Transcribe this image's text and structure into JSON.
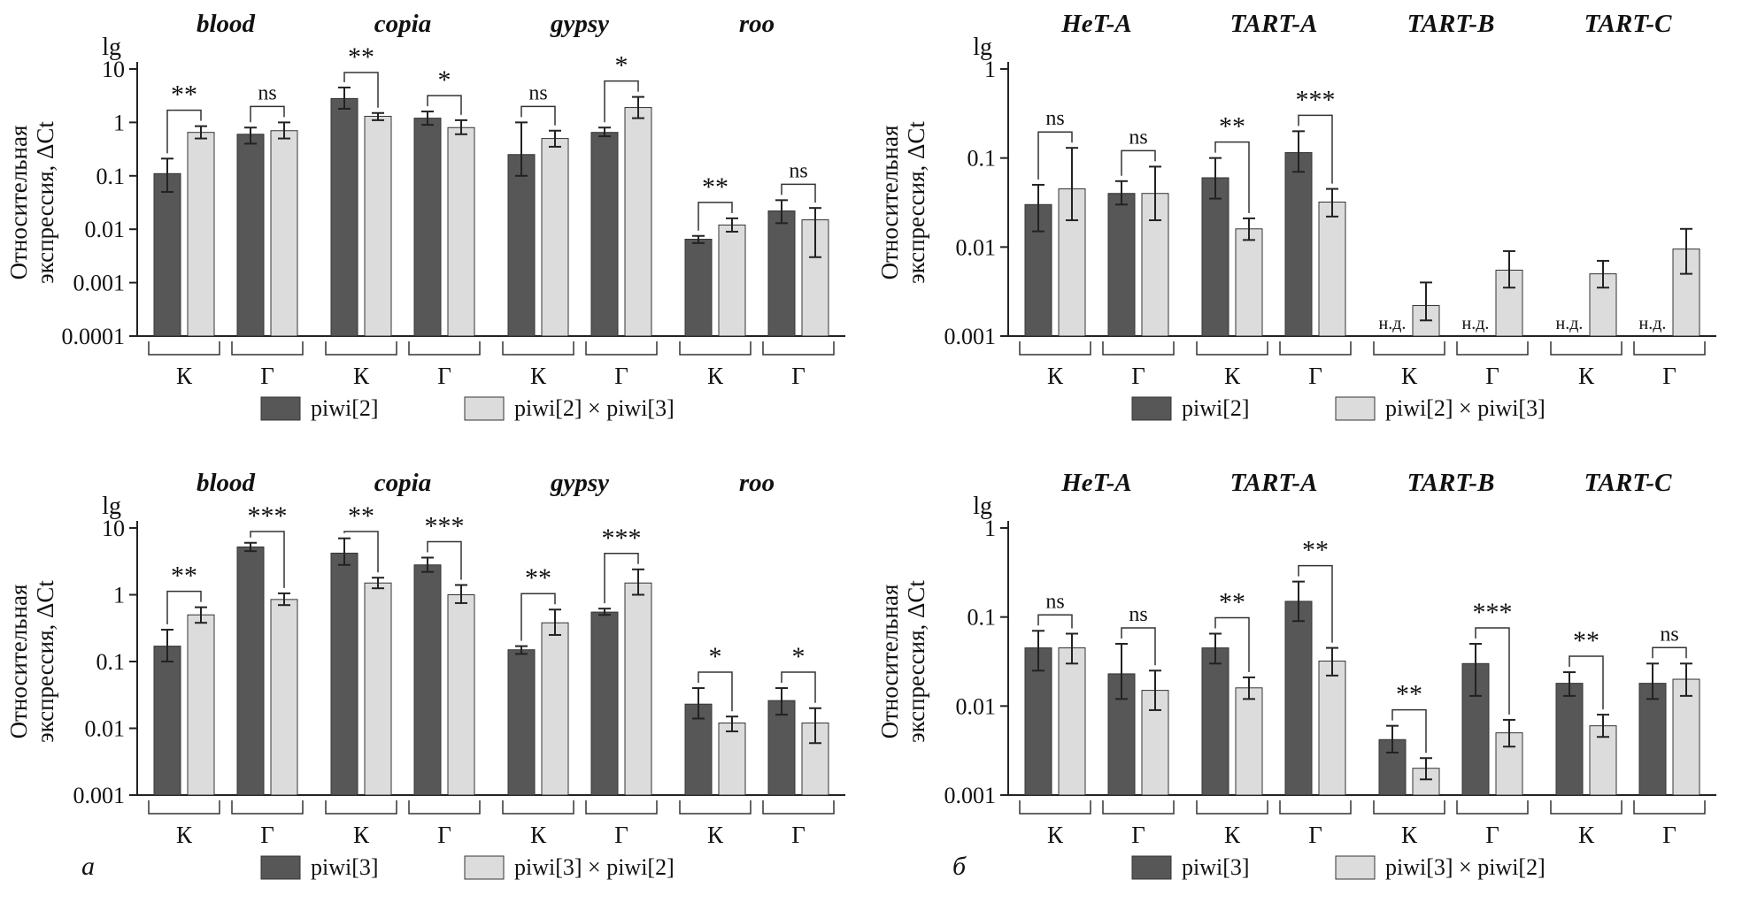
{
  "figure": {
    "ylabel_line1": "Относительная",
    "ylabel_line2": "экспрессия, ΔCt",
    "scale_label": "lg",
    "nd_label": "н.д.",
    "colors": {
      "dark": "#575757",
      "light": "#dcdcdc",
      "outline": "#333333",
      "axis": "#222222"
    }
  },
  "chart_data": [
    {
      "id": "panel-a-top",
      "type": "bar",
      "panel_letter": "",
      "ymin": 0.0001,
      "ymax": 10,
      "yticks": [
        {
          "v": 10,
          "label": "10"
        },
        {
          "v": 1,
          "label": "1"
        },
        {
          "v": 0.1,
          "label": "0.1"
        },
        {
          "v": 0.01,
          "label": "0.01"
        },
        {
          "v": 0.001,
          "label": "0.001"
        },
        {
          "v": 0.0001,
          "label": "0.0001"
        }
      ],
      "legend": [
        {
          "label": "piwi[2]",
          "color": "dark"
        },
        {
          "label": "piwi[2] × piwi[3]",
          "color": "light"
        }
      ],
      "groups": [
        {
          "title": "blood",
          "pairs": [
            {
              "label": "К",
              "sig": "**",
              "bars": [
                {
                  "value": 0.11,
                  "lo": 0.05,
                  "hi": 0.21
                },
                {
                  "value": 0.65,
                  "lo": 0.5,
                  "hi": 0.85
                }
              ]
            },
            {
              "label": "Г",
              "sig": "ns",
              "bars": [
                {
                  "value": 0.6,
                  "lo": 0.4,
                  "hi": 0.8
                },
                {
                  "value": 0.7,
                  "lo": 0.5,
                  "hi": 1.0
                }
              ]
            }
          ]
        },
        {
          "title": "copia",
          "pairs": [
            {
              "label": "К",
              "sig": "**",
              "bars": [
                {
                  "value": 2.8,
                  "lo": 1.8,
                  "hi": 4.5
                },
                {
                  "value": 1.3,
                  "lo": 1.1,
                  "hi": 1.5
                }
              ]
            },
            {
              "label": "Г",
              "sig": "*",
              "bars": [
                {
                  "value": 1.2,
                  "lo": 0.9,
                  "hi": 1.6
                },
                {
                  "value": 0.8,
                  "lo": 0.6,
                  "hi": 1.1
                }
              ]
            }
          ]
        },
        {
          "title": "gypsy",
          "pairs": [
            {
              "label": "К",
              "sig": "ns",
              "bars": [
                {
                  "value": 0.25,
                  "lo": 0.1,
                  "hi": 1.0
                },
                {
                  "value": 0.5,
                  "lo": 0.35,
                  "hi": 0.7
                }
              ]
            },
            {
              "label": "Г",
              "sig": "*",
              "bars": [
                {
                  "value": 0.65,
                  "lo": 0.55,
                  "hi": 0.8
                },
                {
                  "value": 1.9,
                  "lo": 1.2,
                  "hi": 3.0
                }
              ]
            }
          ]
        },
        {
          "title": "roo",
          "pairs": [
            {
              "label": "К",
              "sig": "**",
              "bars": [
                {
                  "value": 0.0065,
                  "lo": 0.0055,
                  "hi": 0.0075
                },
                {
                  "value": 0.012,
                  "lo": 0.009,
                  "hi": 0.016
                }
              ]
            },
            {
              "label": "Г",
              "sig": "ns",
              "bars": [
                {
                  "value": 0.022,
                  "lo": 0.013,
                  "hi": 0.035
                },
                {
                  "value": 0.015,
                  "lo": 0.003,
                  "hi": 0.025
                }
              ]
            }
          ]
        }
      ]
    },
    {
      "id": "panel-b-top",
      "type": "bar",
      "panel_letter": "",
      "ymin": 0.001,
      "ymax": 1,
      "yticks": [
        {
          "v": 1,
          "label": "1"
        },
        {
          "v": 0.1,
          "label": "0.1"
        },
        {
          "v": 0.01,
          "label": "0.01"
        },
        {
          "v": 0.001,
          "label": "0.001"
        }
      ],
      "legend": [
        {
          "label": "piwi[2]",
          "color": "dark"
        },
        {
          "label": "piwi[2] × piwi[3]",
          "color": "light"
        }
      ],
      "groups": [
        {
          "title": "HeT-A",
          "pairs": [
            {
              "label": "К",
              "sig": "ns",
              "bars": [
                {
                  "value": 0.03,
                  "lo": 0.015,
                  "hi": 0.05
                },
                {
                  "value": 0.045,
                  "lo": 0.02,
                  "hi": 0.13
                }
              ]
            },
            {
              "label": "Г",
              "sig": "ns",
              "bars": [
                {
                  "value": 0.04,
                  "lo": 0.03,
                  "hi": 0.055
                },
                {
                  "value": 0.04,
                  "lo": 0.02,
                  "hi": 0.08
                }
              ]
            }
          ]
        },
        {
          "title": "TART-A",
          "pairs": [
            {
              "label": "К",
              "sig": "**",
              "bars": [
                {
                  "value": 0.06,
                  "lo": 0.035,
                  "hi": 0.1
                },
                {
                  "value": 0.016,
                  "lo": 0.012,
                  "hi": 0.021
                }
              ]
            },
            {
              "label": "Г",
              "sig": "***",
              "bars": [
                {
                  "value": 0.115,
                  "lo": 0.07,
                  "hi": 0.2
                },
                {
                  "value": 0.032,
                  "lo": 0.022,
                  "hi": 0.045
                }
              ]
            }
          ]
        },
        {
          "title": "TART-B",
          "pairs": [
            {
              "label": "К",
              "sig": null,
              "bars": [
                {
                  "value": null
                },
                {
                  "value": 0.0022,
                  "lo": 0.0015,
                  "hi": 0.004
                }
              ]
            },
            {
              "label": "Г",
              "sig": null,
              "bars": [
                {
                  "value": null
                },
                {
                  "value": 0.0055,
                  "lo": 0.0035,
                  "hi": 0.009
                }
              ]
            }
          ]
        },
        {
          "title": "TART-C",
          "pairs": [
            {
              "label": "К",
              "sig": null,
              "bars": [
                {
                  "value": null
                },
                {
                  "value": 0.005,
                  "lo": 0.0035,
                  "hi": 0.007
                }
              ]
            },
            {
              "label": "Г",
              "sig": null,
              "bars": [
                {
                  "value": null
                },
                {
                  "value": 0.0095,
                  "lo": 0.005,
                  "hi": 0.016
                }
              ]
            }
          ]
        }
      ]
    },
    {
      "id": "panel-a-bottom",
      "type": "bar",
      "panel_letter": "а",
      "ymin": 0.001,
      "ymax": 10,
      "yticks": [
        {
          "v": 10,
          "label": "10"
        },
        {
          "v": 1,
          "label": "1"
        },
        {
          "v": 0.1,
          "label": "0.1"
        },
        {
          "v": 0.01,
          "label": "0.01"
        },
        {
          "v": 0.001,
          "label": "0.001"
        }
      ],
      "legend": [
        {
          "label": "piwi[3]",
          "color": "dark"
        },
        {
          "label": "piwi[3] × piwi[2]",
          "color": "light"
        }
      ],
      "groups": [
        {
          "title": "blood",
          "pairs": [
            {
              "label": "К",
              "sig": "**",
              "bars": [
                {
                  "value": 0.17,
                  "lo": 0.1,
                  "hi": 0.3
                },
                {
                  "value": 0.5,
                  "lo": 0.38,
                  "hi": 0.65
                }
              ]
            },
            {
              "label": "Г",
              "sig": "***",
              "bars": [
                {
                  "value": 5.2,
                  "lo": 4.5,
                  "hi": 6.0
                },
                {
                  "value": 0.85,
                  "lo": 0.7,
                  "hi": 1.05
                }
              ]
            }
          ]
        },
        {
          "title": "copia",
          "pairs": [
            {
              "label": "К",
              "sig": "**",
              "bars": [
                {
                  "value": 4.2,
                  "lo": 2.8,
                  "hi": 7.0
                },
                {
                  "value": 1.5,
                  "lo": 1.25,
                  "hi": 1.8
                }
              ]
            },
            {
              "label": "Г",
              "sig": "***",
              "bars": [
                {
                  "value": 2.8,
                  "lo": 2.2,
                  "hi": 3.6
                },
                {
                  "value": 1.0,
                  "lo": 0.75,
                  "hi": 1.4
                }
              ]
            }
          ]
        },
        {
          "title": "gypsy",
          "pairs": [
            {
              "label": "К",
              "sig": "**",
              "bars": [
                {
                  "value": 0.15,
                  "lo": 0.13,
                  "hi": 0.17
                },
                {
                  "value": 0.38,
                  "lo": 0.25,
                  "hi": 0.6
                }
              ]
            },
            {
              "label": "Г",
              "sig": "***",
              "bars": [
                {
                  "value": 0.55,
                  "lo": 0.5,
                  "hi": 0.62
                },
                {
                  "value": 1.5,
                  "lo": 1.0,
                  "hi": 2.4
                }
              ]
            }
          ]
        },
        {
          "title": "roo",
          "pairs": [
            {
              "label": "К",
              "sig": "*",
              "bars": [
                {
                  "value": 0.023,
                  "lo": 0.014,
                  "hi": 0.04
                },
                {
                  "value": 0.012,
                  "lo": 0.009,
                  "hi": 0.015
                }
              ]
            },
            {
              "label": "Г",
              "sig": "*",
              "bars": [
                {
                  "value": 0.026,
                  "lo": 0.016,
                  "hi": 0.04
                },
                {
                  "value": 0.012,
                  "lo": 0.006,
                  "hi": 0.02
                }
              ]
            }
          ]
        }
      ]
    },
    {
      "id": "panel-b-bottom",
      "type": "bar",
      "panel_letter": "б",
      "ymin": 0.001,
      "ymax": 1,
      "yticks": [
        {
          "v": 1,
          "label": "1"
        },
        {
          "v": 0.1,
          "label": "0.1"
        },
        {
          "v": 0.01,
          "label": "0.01"
        },
        {
          "v": 0.001,
          "label": "0.001"
        }
      ],
      "legend": [
        {
          "label": "piwi[3]",
          "color": "dark"
        },
        {
          "label": "piwi[3] × piwi[2]",
          "color": "light"
        }
      ],
      "groups": [
        {
          "title": "HeT-A",
          "pairs": [
            {
              "label": "К",
              "sig": "ns",
              "bars": [
                {
                  "value": 0.045,
                  "lo": 0.025,
                  "hi": 0.07
                },
                {
                  "value": 0.045,
                  "lo": 0.03,
                  "hi": 0.065
                }
              ]
            },
            {
              "label": "Г",
              "sig": "ns",
              "bars": [
                {
                  "value": 0.023,
                  "lo": 0.012,
                  "hi": 0.05
                },
                {
                  "value": 0.015,
                  "lo": 0.009,
                  "hi": 0.025
                }
              ]
            }
          ]
        },
        {
          "title": "TART-A",
          "pairs": [
            {
              "label": "К",
              "sig": "**",
              "bars": [
                {
                  "value": 0.045,
                  "lo": 0.03,
                  "hi": 0.065
                },
                {
                  "value": 0.016,
                  "lo": 0.012,
                  "hi": 0.021
                }
              ]
            },
            {
              "label": "Г",
              "sig": "**",
              "bars": [
                {
                  "value": 0.15,
                  "lo": 0.09,
                  "hi": 0.25
                },
                {
                  "value": 0.032,
                  "lo": 0.022,
                  "hi": 0.045
                }
              ]
            }
          ]
        },
        {
          "title": "TART-B",
          "pairs": [
            {
              "label": "К",
              "sig": "**",
              "bars": [
                {
                  "value": 0.0042,
                  "lo": 0.003,
                  "hi": 0.006
                },
                {
                  "value": 0.002,
                  "lo": 0.0015,
                  "hi": 0.0026
                }
              ]
            },
            {
              "label": "Г",
              "sig": "***",
              "bars": [
                {
                  "value": 0.03,
                  "lo": 0.013,
                  "hi": 0.05
                },
                {
                  "value": 0.005,
                  "lo": 0.0035,
                  "hi": 0.007
                }
              ]
            }
          ]
        },
        {
          "title": "TART-C",
          "pairs": [
            {
              "label": "К",
              "sig": "**",
              "bars": [
                {
                  "value": 0.018,
                  "lo": 0.013,
                  "hi": 0.024
                },
                {
                  "value": 0.006,
                  "lo": 0.0045,
                  "hi": 0.008
                }
              ]
            },
            {
              "label": "Г",
              "sig": "ns",
              "bars": [
                {
                  "value": 0.018,
                  "lo": 0.012,
                  "hi": 0.03
                },
                {
                  "value": 0.02,
                  "lo": 0.013,
                  "hi": 0.03
                }
              ]
            }
          ]
        }
      ]
    }
  ]
}
